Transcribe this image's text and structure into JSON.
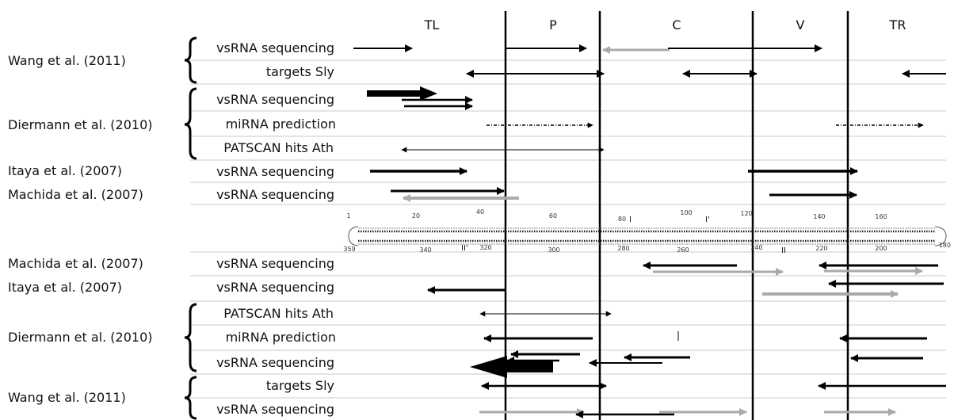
{
  "regions": [
    "TL",
    "P",
    "C",
    "V",
    "TR"
  ],
  "top_rows": [
    {
      "method": "vsRNA sequencing",
      "study": "Wang et al. (2011)"
    },
    {
      "method": "targets Sly",
      "study": ""
    },
    {
      "method": "vsRNA sequencing",
      "study": "Diermann et al. (2010)"
    },
    {
      "method": "miRNA prediction",
      "study": ""
    },
    {
      "method": "PATSCAN hits Ath",
      "study": ""
    },
    {
      "method": "vsRNA sequencing",
      "study": "Itaya et al. (2007)"
    },
    {
      "method": "vsRNA sequencing",
      "study": "Machida et al. (2007)"
    }
  ],
  "bottom_rows": [
    {
      "method": "vsRNA sequencing",
      "study": "Machida et al. (2007)"
    },
    {
      "method": "vsRNA sequencing",
      "study": "Itaya et al. (2007)"
    },
    {
      "method": "PATSCAN hits Ath",
      "study": "Diermann et al. (2010)"
    },
    {
      "method": "miRNA prediction",
      "study": ""
    },
    {
      "method": "vsRNA sequencing",
      "study": ""
    },
    {
      "method": "targets Sly",
      "study": "Wang et al. (2011)"
    },
    {
      "method": "vsRNA sequencing",
      "study": ""
    }
  ],
  "structure": {
    "top_ticks": [
      "1",
      "20",
      "40",
      "60",
      "80",
      "100",
      "120",
      "140",
      "160"
    ],
    "bottom_ticks": [
      "359",
      "340",
      "320",
      "300",
      "280",
      "260",
      "240",
      "220",
      "200",
      "180"
    ],
    "loop_labels": [
      "I",
      "I'",
      "II",
      "II'"
    ]
  },
  "colors": {
    "black": "#000000",
    "gray": "#aaaaaa",
    "grid": "#c8c8c8"
  }
}
